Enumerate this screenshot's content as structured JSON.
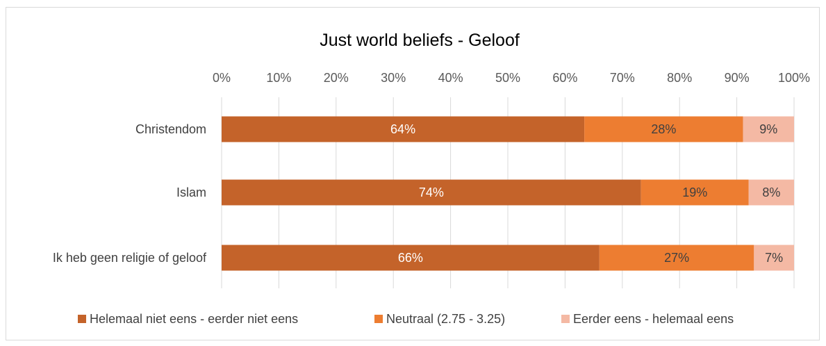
{
  "chart_data": {
    "type": "bar",
    "orientation": "horizontal",
    "stacked": "percent",
    "title": "Just world beliefs - Geloof",
    "xlabel": "",
    "ylabel": "",
    "xlim": [
      0,
      100
    ],
    "x_ticks": [
      "0%",
      "10%",
      "20%",
      "30%",
      "40%",
      "50%",
      "60%",
      "70%",
      "80%",
      "90%",
      "100%"
    ],
    "categories": [
      "Christendom",
      "Islam",
      "Ik heb geen religie of geloof"
    ],
    "series": [
      {
        "name": "Helemaal niet eens - eerder niet eens",
        "color": "#c4632a",
        "values": [
          64,
          74,
          66
        ],
        "labels": [
          "64%",
          "74%",
          "66%"
        ],
        "label_color": "#ffffff"
      },
      {
        "name": "Neutraal (2.75 - 3.25)",
        "color": "#ed7d31",
        "values": [
          28,
          19,
          27
        ],
        "labels": [
          "28%",
          "19%",
          "27%"
        ],
        "label_color": "#404040"
      },
      {
        "name": "Eerder eens - helemaal eens",
        "color": "#f4b9a4",
        "values": [
          9,
          8,
          7
        ],
        "labels": [
          "9%",
          "8%",
          "7%"
        ],
        "label_color": "#404040"
      }
    ],
    "grid": true,
    "gridline_color": "#d9d9d9",
    "legend_position": "bottom"
  }
}
